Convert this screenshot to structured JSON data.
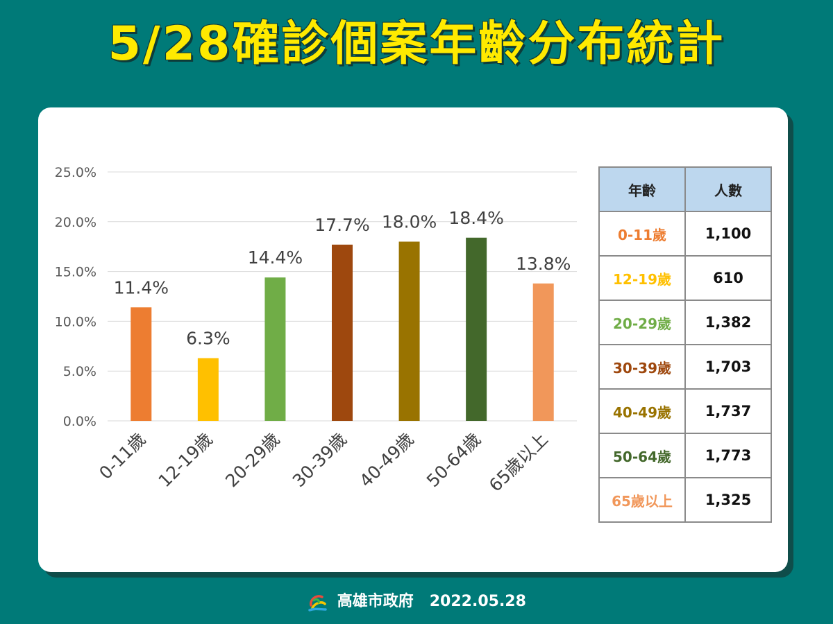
{
  "title": "5/28確診個案年齡分布統計",
  "table": {
    "headers": [
      "年齡",
      "人數"
    ],
    "rows": [
      {
        "age": "0-11歲",
        "count": "1,100",
        "color": "#ed7d31"
      },
      {
        "age": "12-19歲",
        "count": "610",
        "color": "#ffc000"
      },
      {
        "age": "20-29歲",
        "count": "1,382",
        "color": "#70ad47"
      },
      {
        "age": "30-39歲",
        "count": "1,703",
        "color": "#9e480e"
      },
      {
        "age": "40-49歲",
        "count": "1,737",
        "color": "#997300"
      },
      {
        "age": "50-64歲",
        "count": "1,773",
        "color": "#43682b"
      },
      {
        "age": "65歲以上",
        "count": "1,325",
        "color": "#f1975a"
      }
    ]
  },
  "footer": {
    "org": "高雄市政府",
    "date": "2022.05.28"
  },
  "chart_data": {
    "type": "bar",
    "categories": [
      "0-11歲",
      "12-19歲",
      "20-29歲",
      "30-39歲",
      "40-49歲",
      "50-64歲",
      "65歲以上"
    ],
    "values": [
      11.4,
      6.3,
      14.4,
      17.7,
      18.0,
      18.4,
      13.8
    ],
    "data_labels": [
      "11.4%",
      "6.3%",
      "14.4%",
      "17.7%",
      "18.0%",
      "18.4%",
      "13.8%"
    ],
    "colors": [
      "#ed7d31",
      "#ffc000",
      "#70ad47",
      "#9e480e",
      "#997300",
      "#43682b",
      "#f1975a"
    ],
    "yticks": [
      0,
      5,
      10,
      15,
      20,
      25
    ],
    "ytick_labels": [
      "0.0%",
      "5.0%",
      "10.0%",
      "15.0%",
      "20.0%",
      "25.0%"
    ],
    "ylim": [
      0,
      25
    ],
    "grid": true,
    "title": "",
    "xlabel": "",
    "ylabel": ""
  }
}
